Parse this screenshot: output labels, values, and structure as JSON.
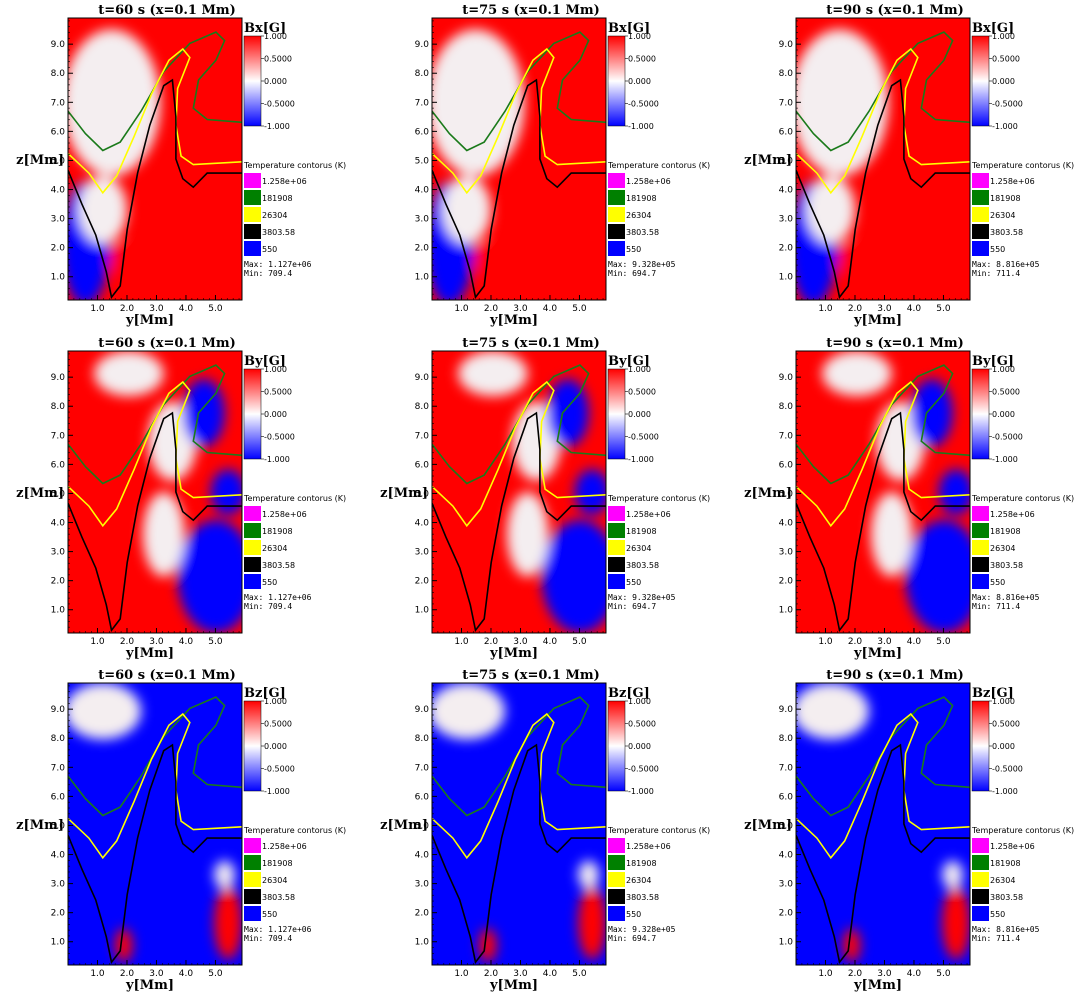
{
  "colors": {
    "positive": "#ff0000",
    "zero": "#ffffff",
    "negative": "#0000ff",
    "frame": "#000000"
  },
  "chart_data": [
    {
      "type": "heatmap",
      "row": 0,
      "col": 0,
      "title": "t=60 s (x=0.1 Mm)",
      "field": "Bx[G]",
      "xlabel": "y[Mm]",
      "ylabel": "z[Mm]",
      "xticks": [
        "1.0",
        "2.0",
        "3.0",
        "4.0",
        "5.0"
      ],
      "yticks": [
        "1.0",
        "2.0",
        "3.0",
        "4.0",
        "5.0",
        "6.0",
        "7.0",
        "8.0",
        "9.0"
      ],
      "xlim": [
        0,
        5.9
      ],
      "ylim": [
        0.2,
        9.9
      ],
      "colorbar": {
        "ticks": [
          "1.000",
          "0.5000",
          "0.000",
          "-0.5000",
          "-1.000"
        ],
        "range": [
          -1,
          1
        ]
      },
      "legend": {
        "title": "Temperature contorus (K)",
        "items": [
          {
            "label": "1.258e+06",
            "color": "#ff00ff"
          },
          {
            "label": "181908",
            "color": "#008000"
          },
          {
            "label": "26304",
            "color": "#ffff00"
          },
          {
            "label": "3803.58",
            "color": "#000000"
          },
          {
            "label": "550",
            "color": "#0000ff"
          }
        ]
      },
      "stats": {
        "max": "Max:  1.127e+06",
        "min": "Min:  709.4"
      },
      "dominant": "positive"
    },
    {
      "type": "heatmap",
      "row": 0,
      "col": 1,
      "title": "t=75 s (x=0.1 Mm)",
      "field": "Bx[G]",
      "xlabel": "y[Mm]",
      "ylabel": "",
      "xticks": [
        "1.0",
        "2.0",
        "3.0",
        "4.0",
        "5.0"
      ],
      "yticks": [
        "1.0",
        "2.0",
        "3.0",
        "4.0",
        "5.0",
        "6.0",
        "7.0",
        "8.0",
        "9.0"
      ],
      "xlim": [
        0,
        5.9
      ],
      "ylim": [
        0.2,
        9.9
      ],
      "colorbar": {
        "ticks": [
          "1.000",
          "0.5000",
          "0.000",
          "-0.5000",
          "-1.000"
        ],
        "range": [
          -1,
          1
        ]
      },
      "legend": {
        "title": "Temperature contorus (K)",
        "items": [
          {
            "label": "1.258e+06",
            "color": "#ff00ff"
          },
          {
            "label": "181908",
            "color": "#008000"
          },
          {
            "label": "26304",
            "color": "#ffff00"
          },
          {
            "label": "3803.58",
            "color": "#000000"
          },
          {
            "label": "550",
            "color": "#0000ff"
          }
        ]
      },
      "stats": {
        "max": "Max:  9.328e+05",
        "min": "Min:  694.7"
      },
      "dominant": "positive"
    },
    {
      "type": "heatmap",
      "row": 0,
      "col": 2,
      "title": "t=90 s (x=0.1 Mm)",
      "field": "Bx[G]",
      "xlabel": "y[Mm]",
      "ylabel": "z[Mm]",
      "xticks": [
        "1.0",
        "2.0",
        "3.0",
        "4.0",
        "5.0"
      ],
      "yticks": [
        "1.0",
        "2.0",
        "3.0",
        "4.0",
        "5.0",
        "6.0",
        "7.0",
        "8.0",
        "9.0"
      ],
      "xlim": [
        0,
        5.9
      ],
      "ylim": [
        0.2,
        9.9
      ],
      "colorbar": {
        "ticks": [
          "1.000",
          "0.5000",
          "0.000",
          "-0.5000",
          "-1.000"
        ],
        "range": [
          -1,
          1
        ]
      },
      "legend": {
        "title": "Temperature contorus (K)",
        "items": [
          {
            "label": "1.258e+06",
            "color": "#ff00ff"
          },
          {
            "label": "181908",
            "color": "#008000"
          },
          {
            "label": "26304",
            "color": "#ffff00"
          },
          {
            "label": "3803.58",
            "color": "#000000"
          },
          {
            "label": "550",
            "color": "#0000ff"
          }
        ]
      },
      "stats": {
        "max": "Max:  8.816e+05",
        "min": "Min:  711.4"
      },
      "dominant": "positive"
    },
    {
      "type": "heatmap",
      "row": 1,
      "col": 0,
      "title": "t=60 s (x=0.1 Mm)",
      "field": "By[G]",
      "xlabel": "y[Mm]",
      "ylabel": "z[Mm]",
      "xticks": [
        "1.0",
        "2.0",
        "3.0",
        "4.0",
        "5.0"
      ],
      "yticks": [
        "1.0",
        "2.0",
        "3.0",
        "4.0",
        "5.0",
        "6.0",
        "7.0",
        "8.0",
        "9.0"
      ],
      "xlim": [
        0,
        5.9
      ],
      "ylim": [
        0.2,
        9.9
      ],
      "colorbar": {
        "ticks": [
          "1.000",
          "0.5000",
          "0.000",
          "-0.5000",
          "-1.000"
        ],
        "range": [
          -1,
          1
        ]
      },
      "legend": {
        "title": "Temperature contorus (K)",
        "items": [
          {
            "label": "1.258e+06",
            "color": "#ff00ff"
          },
          {
            "label": "181908",
            "color": "#008000"
          },
          {
            "label": "26304",
            "color": "#ffff00"
          },
          {
            "label": "3803.58",
            "color": "#000000"
          },
          {
            "label": "550",
            "color": "#0000ff"
          }
        ]
      },
      "stats": {
        "max": "Max:  1.127e+06",
        "min": "Min:  709.4"
      },
      "dominant": "mixed"
    },
    {
      "type": "heatmap",
      "row": 1,
      "col": 1,
      "title": "t=75 s (x=0.1 Mm)",
      "field": "By[G]",
      "xlabel": "y[Mm]",
      "ylabel": "z[Mm]",
      "xticks": [
        "1.0",
        "2.0",
        "3.0",
        "4.0",
        "5.0"
      ],
      "yticks": [
        "1.0",
        "2.0",
        "3.0",
        "4.0",
        "5.0",
        "6.0",
        "7.0",
        "8.0",
        "9.0"
      ],
      "xlim": [
        0,
        5.9
      ],
      "ylim": [
        0.2,
        9.9
      ],
      "colorbar": {
        "ticks": [
          "1.000",
          "0.5000",
          "0.000",
          "-0.5000",
          "-1.000"
        ],
        "range": [
          -1,
          1
        ]
      },
      "legend": {
        "title": "Temperature contorus (K)",
        "items": [
          {
            "label": "1.258e+06",
            "color": "#ff00ff"
          },
          {
            "label": "181908",
            "color": "#008000"
          },
          {
            "label": "26304",
            "color": "#ffff00"
          },
          {
            "label": "3803.58",
            "color": "#000000"
          },
          {
            "label": "550",
            "color": "#0000ff"
          }
        ]
      },
      "stats": {
        "max": "Max:  9.328e+05",
        "min": "Min:  694.7"
      },
      "dominant": "mixed"
    },
    {
      "type": "heatmap",
      "row": 1,
      "col": 2,
      "title": "t=90 s (x=0.1 Mm)",
      "field": "By[G]",
      "xlabel": "y[Mm]",
      "ylabel": "z[Mm]",
      "xticks": [
        "1.0",
        "2.0",
        "3.0",
        "4.0",
        "5.0"
      ],
      "yticks": [
        "1.0",
        "2.0",
        "3.0",
        "4.0",
        "5.0",
        "6.0",
        "7.0",
        "8.0",
        "9.0"
      ],
      "xlim": [
        0,
        5.9
      ],
      "ylim": [
        0.2,
        9.9
      ],
      "colorbar": {
        "ticks": [
          "1.000",
          "0.5000",
          "0.000",
          "-0.5000",
          "-1.000"
        ],
        "range": [
          -1,
          1
        ]
      },
      "legend": {
        "title": "Temperature contorus (K)",
        "items": [
          {
            "label": "1.258e+06",
            "color": "#ff00ff"
          },
          {
            "label": "181908",
            "color": "#008000"
          },
          {
            "label": "26304",
            "color": "#ffff00"
          },
          {
            "label": "3803.58",
            "color": "#000000"
          },
          {
            "label": "550",
            "color": "#0000ff"
          }
        ]
      },
      "stats": {
        "max": "Max:  8.816e+05",
        "min": "Min:  711.4"
      },
      "dominant": "mixed"
    },
    {
      "type": "heatmap",
      "row": 2,
      "col": 0,
      "title": "t=60 s (x=0.1 Mm)",
      "field": "Bz[G]",
      "xlabel": "y[Mm]",
      "ylabel": "z[Mm]",
      "xticks": [
        "1.0",
        "2.0",
        "3.0",
        "4.0",
        "5.0"
      ],
      "yticks": [
        "1.0",
        "2.0",
        "3.0",
        "4.0",
        "5.0",
        "6.0",
        "7.0",
        "8.0",
        "9.0"
      ],
      "xlim": [
        0,
        5.9
      ],
      "ylim": [
        0.2,
        9.9
      ],
      "colorbar": {
        "ticks": [
          "1.000",
          "0.5000",
          "0.000",
          "-0.5000",
          "-1.000"
        ],
        "range": [
          -1,
          1
        ]
      },
      "legend": {
        "title": "Temperature contorus (K)",
        "items": [
          {
            "label": "1.258e+06",
            "color": "#ff00ff"
          },
          {
            "label": "181908",
            "color": "#008000"
          },
          {
            "label": "26304",
            "color": "#ffff00"
          },
          {
            "label": "3803.58",
            "color": "#000000"
          },
          {
            "label": "550",
            "color": "#0000ff"
          }
        ]
      },
      "stats": {
        "max": "Max:  1.127e+06",
        "min": "Min:  709.4"
      },
      "dominant": "negative"
    },
    {
      "type": "heatmap",
      "row": 2,
      "col": 1,
      "title": "t=75 s (x=0.1 Mm)",
      "field": "Bz[G]",
      "xlabel": "y[Mm]",
      "ylabel": "z[Mm]",
      "xticks": [
        "1.0",
        "2.0",
        "3.0",
        "4.0",
        "5.0"
      ],
      "yticks": [
        "1.0",
        "2.0",
        "3.0",
        "4.0",
        "5.0",
        "6.0",
        "7.0",
        "8.0",
        "9.0"
      ],
      "xlim": [
        0,
        5.9
      ],
      "ylim": [
        0.2,
        9.9
      ],
      "colorbar": {
        "ticks": [
          "1.000",
          "0.5000",
          "0.000",
          "-0.5000",
          "-1.000"
        ],
        "range": [
          -1,
          1
        ]
      },
      "legend": {
        "title": "Temperature contorus (K)",
        "items": [
          {
            "label": "1.258e+06",
            "color": "#ff00ff"
          },
          {
            "label": "181908",
            "color": "#008000"
          },
          {
            "label": "26304",
            "color": "#ffff00"
          },
          {
            "label": "3803.58",
            "color": "#000000"
          },
          {
            "label": "550",
            "color": "#0000ff"
          }
        ]
      },
      "stats": {
        "max": "Max:  9.328e+05",
        "min": "Min:  694.7"
      },
      "dominant": "negative"
    },
    {
      "type": "heatmap",
      "row": 2,
      "col": 2,
      "title": "t=90 s (x=0.1 Mm)",
      "field": "Bz[G]",
      "xlabel": "y[Mm]",
      "ylabel": "z[Mm]",
      "xticks": [
        "1.0",
        "2.0",
        "3.0",
        "4.0",
        "5.0"
      ],
      "yticks": [
        "1.0",
        "2.0",
        "3.0",
        "4.0",
        "5.0",
        "6.0",
        "7.0",
        "8.0",
        "9.0"
      ],
      "xlim": [
        0,
        5.9
      ],
      "ylim": [
        0.2,
        9.9
      ],
      "colorbar": {
        "ticks": [
          "1.000",
          "0.5000",
          "0.000",
          "-0.5000",
          "-1.000"
        ],
        "range": [
          -1,
          1
        ]
      },
      "legend": {
        "title": "Temperature contorus (K)",
        "items": [
          {
            "label": "1.258e+06",
            "color": "#ff00ff"
          },
          {
            "label": "181908",
            "color": "#008000"
          },
          {
            "label": "26304",
            "color": "#ffff00"
          },
          {
            "label": "3803.58",
            "color": "#000000"
          },
          {
            "label": "550",
            "color": "#0000ff"
          }
        ]
      },
      "stats": {
        "max": "Max:  8.816e+05",
        "min": "Min:  711.4"
      },
      "dominant": "negative"
    }
  ]
}
